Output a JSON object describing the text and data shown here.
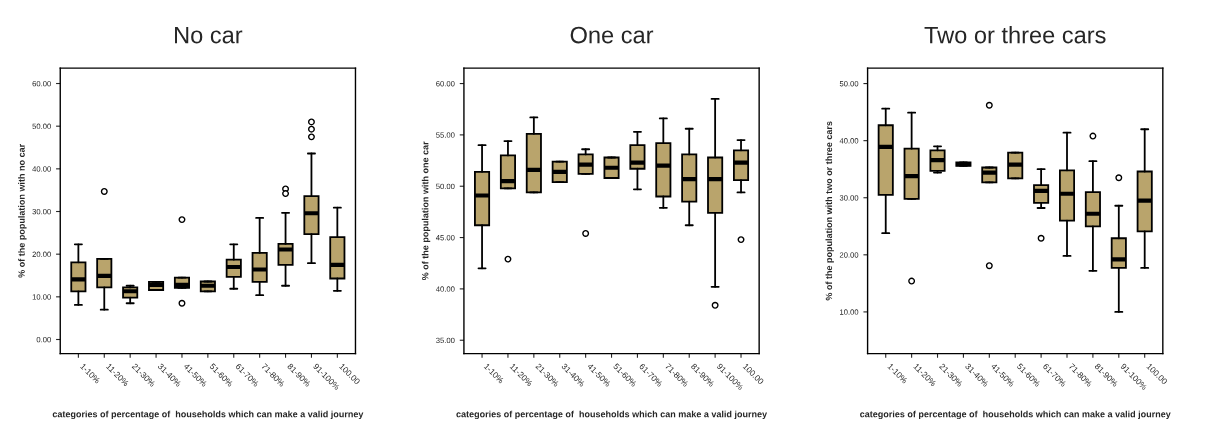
{
  "chart_data": [
    {
      "type": "box",
      "title": "No car",
      "ylabel": "% of the population with no car",
      "xlabel": "categories of percentage of  households which can make a valid journey",
      "color": "#b9a46c",
      "grid": false,
      "categories": [
        "1-10%",
        "11-20%",
        "21-30%",
        "31-40%",
        "41-50%",
        "51-60%",
        "61-70%",
        "71-80%",
        "81-90%",
        "91-100%",
        "100.00"
      ],
      "ylim": [
        -3.3,
        63.6
      ],
      "yticks": [
        {
          "value": 0,
          "label": "0.00"
        },
        {
          "value": 10,
          "label": "10.00"
        },
        {
          "value": 20,
          "label": "20.00"
        },
        {
          "value": 30,
          "label": "30.00"
        },
        {
          "value": 40,
          "label": "40.00"
        },
        {
          "value": 50,
          "label": "50.00"
        },
        {
          "value": 60,
          "label": "60.00"
        }
      ],
      "boxes": [
        {
          "low": 8.1,
          "q1": 11.3,
          "median": 14.1,
          "q3": 18.1,
          "high": 22.3
        },
        {
          "low": 7.0,
          "q1": 12.2,
          "median": 14.9,
          "q3": 18.9,
          "high": 18.9,
          "outliers": [
            34.7
          ]
        },
        {
          "low": 8.5,
          "q1": 9.8,
          "median": 11.3,
          "q3": 12.2,
          "high": 12.6
        },
        {
          "low": 11.6,
          "q1": 11.6,
          "median": 12.8,
          "q3": 13.5,
          "high": 13.5
        },
        {
          "low": 12.1,
          "q1": 12.1,
          "median": 12.8,
          "q3": 14.5,
          "high": 14.5,
          "outliers": [
            28.1,
            8.5
          ]
        },
        {
          "low": 11.3,
          "q1": 11.3,
          "median": 12.6,
          "q3": 13.6,
          "high": 13.6
        },
        {
          "low": 11.9,
          "q1": 14.7,
          "median": 17.0,
          "q3": 18.7,
          "high": 22.3
        },
        {
          "low": 10.4,
          "q1": 13.5,
          "median": 16.4,
          "q3": 20.3,
          "high": 28.5
        },
        {
          "low": 12.6,
          "q1": 17.5,
          "median": 21.1,
          "q3": 22.4,
          "high": 29.7,
          "outliers": [
            35.3,
            34.2
          ]
        },
        {
          "low": 17.9,
          "q1": 24.7,
          "median": 29.6,
          "q3": 33.6,
          "high": 43.6,
          "outliers": [
            51.0,
            49.3,
            47.5
          ]
        },
        {
          "low": 11.4,
          "q1": 14.3,
          "median": 17.5,
          "q3": 24.0,
          "high": 30.9
        }
      ]
    },
    {
      "type": "box",
      "title": "One car",
      "ylabel": "% of the population with one car",
      "xlabel": "categories of percentage of  households which can make a valid journey",
      "color": "#b9a46c",
      "grid": false,
      "categories": [
        "1-10%",
        "11-20%",
        "21-30%",
        "31-40%",
        "41-50%",
        "51-60%",
        "61-70%",
        "71-80%",
        "81-90%",
        "91-100%",
        "100.00"
      ],
      "ylim": [
        33.7,
        61.5
      ],
      "yticks": [
        {
          "value": 35,
          "label": "35.00"
        },
        {
          "value": 40,
          "label": "40.00"
        },
        {
          "value": 45,
          "label": "45.00"
        },
        {
          "value": 50,
          "label": "50.00"
        },
        {
          "value": 55,
          "label": "55.00"
        },
        {
          "value": 60,
          "label": "60.00"
        }
      ],
      "boxes": [
        {
          "low": 42.0,
          "q1": 46.2,
          "median": 49.1,
          "q3": 51.4,
          "high": 54.0
        },
        {
          "low": 49.8,
          "q1": 49.8,
          "median": 50.5,
          "q3": 53.0,
          "high": 54.4,
          "outliers": [
            42.9
          ]
        },
        {
          "low": 49.4,
          "q1": 49.4,
          "median": 51.6,
          "q3": 55.1,
          "high": 56.7
        },
        {
          "low": 50.4,
          "q1": 50.4,
          "median": 51.4,
          "q3": 52.4,
          "high": 52.4
        },
        {
          "low": 51.2,
          "q1": 51.2,
          "median": 52.1,
          "q3": 53.1,
          "high": 53.6,
          "outliers": [
            45.4
          ]
        },
        {
          "low": 50.8,
          "q1": 50.8,
          "median": 51.8,
          "q3": 52.8,
          "high": 52.8
        },
        {
          "low": 49.7,
          "q1": 51.7,
          "median": 52.3,
          "q3": 54.0,
          "high": 55.3
        },
        {
          "low": 47.9,
          "q1": 49.0,
          "median": 52.0,
          "q3": 54.2,
          "high": 56.6
        },
        {
          "low": 46.2,
          "q1": 48.5,
          "median": 50.7,
          "q3": 53.1,
          "high": 55.6
        },
        {
          "low": 40.2,
          "q1": 47.4,
          "median": 50.7,
          "q3": 52.8,
          "high": 58.5,
          "outliers": [
            38.4
          ]
        },
        {
          "low": 49.4,
          "q1": 50.6,
          "median": 52.3,
          "q3": 53.5,
          "high": 54.5,
          "outliers": [
            44.8
          ]
        }
      ]
    },
    {
      "type": "box",
      "title": "Two or three cars",
      "ylabel": "% of the population with two or three cars",
      "xlabel": "categories of percentage of  households which can make a valid journey",
      "color": "#b9a46c",
      "grid": false,
      "categories": [
        "1-10%",
        "11-20%",
        "21-30%",
        "31-40%",
        "41-50%",
        "51-60%",
        "61-70%",
        "71-80%",
        "81-90%",
        "91-100%",
        "100.00"
      ],
      "ylim": [
        2.7,
        52.7
      ],
      "yticks": [
        {
          "value": 10,
          "label": "10.00"
        },
        {
          "value": 20,
          "label": "20.00"
        },
        {
          "value": 30,
          "label": "30.00"
        },
        {
          "value": 40,
          "label": "40.00"
        },
        {
          "value": 50,
          "label": "50.00"
        }
      ],
      "boxes": [
        {
          "low": 23.8,
          "q1": 30.5,
          "median": 38.9,
          "q3": 42.7,
          "high": 45.6
        },
        {
          "low": 29.8,
          "q1": 29.8,
          "median": 33.8,
          "q3": 38.6,
          "high": 44.9,
          "outliers": [
            15.4
          ]
        },
        {
          "low": 34.4,
          "q1": 34.7,
          "median": 36.6,
          "q3": 38.3,
          "high": 39.0
        },
        {
          "low": 35.6,
          "q1": 35.6,
          "median": 35.9,
          "q3": 36.2,
          "high": 36.2
        },
        {
          "low": 32.7,
          "q1": 32.7,
          "median": 34.4,
          "q3": 35.3,
          "high": 35.3,
          "outliers": [
            46.2,
            18.1
          ]
        },
        {
          "low": 33.4,
          "q1": 33.4,
          "median": 35.8,
          "q3": 37.9,
          "high": 37.9
        },
        {
          "low": 28.2,
          "q1": 29.1,
          "median": 31.2,
          "q3": 32.2,
          "high": 35.0,
          "outliers": [
            22.9
          ]
        },
        {
          "low": 19.8,
          "q1": 26.0,
          "median": 30.7,
          "q3": 34.8,
          "high": 41.4
        },
        {
          "low": 17.2,
          "q1": 25.0,
          "median": 27.2,
          "q3": 31.0,
          "high": 36.4,
          "outliers": [
            40.8
          ]
        },
        {
          "low": 10.0,
          "q1": 17.7,
          "median": 19.2,
          "q3": 22.9,
          "high": 28.6,
          "outliers": [
            33.5
          ]
        },
        {
          "low": 17.7,
          "q1": 24.1,
          "median": 29.5,
          "q3": 34.6,
          "high": 42.0
        }
      ]
    }
  ]
}
